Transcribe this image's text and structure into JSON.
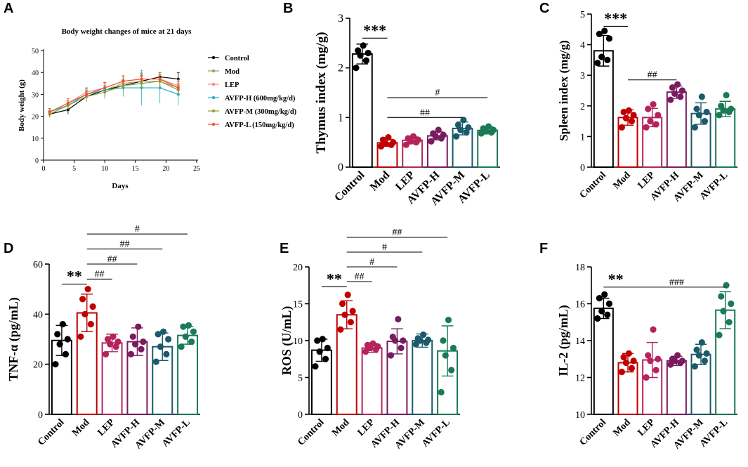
{
  "colors": {
    "Control": "#000000",
    "Mod": "#c00000",
    "LEP": "#b5235d",
    "AVFP-H": "#7a1a5f",
    "AVFP-M": "#1b5a6b",
    "AVFP-L": "#1a7a56"
  },
  "line_colors": {
    "Control": "#000000",
    "Mod": "#a0a060",
    "LEP": "#f08a8a",
    "AVFP-H": "#20b0c0",
    "AVFP-M": "#90a030",
    "AVFP-L": "#f05030"
  },
  "chart_data": [
    {
      "panel": "A",
      "type": "line",
      "title": "Body weight changes of mice at 21 days",
      "xlabel": "Days",
      "ylabel": "Body weight (g)",
      "xlim": [
        0,
        25
      ],
      "ylim": [
        0,
        50
      ],
      "xticks": [
        "0",
        "5",
        "10",
        "15",
        "20",
        "25"
      ],
      "yticks": [
        "0",
        "10",
        "20",
        "30",
        "40",
        "50"
      ],
      "x": [
        1,
        4,
        7,
        10,
        13,
        16,
        19,
        22
      ],
      "legend": [
        "Control",
        "Mod",
        "LEP",
        "AVFP-H (600mg/kg/d)",
        "AVFP-M (300mg/kg/d)",
        "AVFP-L (150mg/kg/d)"
      ],
      "series": [
        {
          "name": "Control",
          "key": "Control",
          "values": [
            21,
            23,
            29,
            32,
            34,
            36,
            38,
            37
          ],
          "err": [
            1.5,
            2,
            2,
            2,
            2.5,
            2.5,
            2,
            3
          ]
        },
        {
          "name": "Mod",
          "key": "Mod",
          "values": [
            21,
            25,
            30,
            32,
            35,
            36,
            36,
            33
          ],
          "err": [
            1.5,
            2,
            2.5,
            3,
            3,
            3,
            3,
            3
          ]
        },
        {
          "name": "LEP",
          "key": "LEP",
          "values": [
            22,
            26,
            31,
            33,
            36,
            37,
            37,
            34
          ],
          "err": [
            1.5,
            2,
            2,
            2.5,
            2.5,
            3,
            3,
            3
          ]
        },
        {
          "name": "AVFP-H (600mg/kg/d)",
          "key": "AVFP-H",
          "values": [
            22,
            25,
            30,
            32,
            33,
            33,
            33,
            30
          ],
          "err": [
            1.5,
            2,
            3,
            3.5,
            4,
            8,
            7,
            5
          ]
        },
        {
          "name": "AVFP-M (300mg/kg/d)",
          "key": "AVFP-M",
          "values": [
            21,
            25,
            29,
            31,
            34,
            35,
            36,
            32
          ],
          "err": [
            1.5,
            2,
            2.5,
            3,
            3,
            3,
            3,
            3
          ]
        },
        {
          "name": "AVFP-L (150mg/kg/d)",
          "key": "AVFP-L",
          "values": [
            22,
            26,
            30,
            33,
            36,
            37,
            37,
            33
          ],
          "err": [
            1.5,
            2,
            2,
            2.5,
            2.5,
            2.5,
            3,
            3
          ]
        }
      ]
    },
    {
      "panel": "B",
      "type": "bar",
      "ylabel": "Thymus index (mg/g)",
      "ylim": [
        0,
        3
      ],
      "yticks": [
        "0",
        "1",
        "2",
        "3"
      ],
      "categories": [
        "Control",
        "Mod",
        "LEP",
        "AVFP-H",
        "AVFP-M",
        "AVFP-L"
      ],
      "values": [
        2.28,
        0.49,
        0.54,
        0.63,
        0.78,
        0.74
      ],
      "err": [
        0.2,
        0.07,
        0.07,
        0.08,
        0.13,
        0.07
      ],
      "points": [
        [
          2.0,
          2.15,
          2.25,
          2.3,
          2.35,
          2.45
        ],
        [
          0.42,
          0.45,
          0.48,
          0.5,
          0.55,
          0.6
        ],
        [
          0.45,
          0.5,
          0.52,
          0.55,
          0.58,
          0.62
        ],
        [
          0.52,
          0.58,
          0.62,
          0.65,
          0.68,
          0.75
        ],
        [
          0.62,
          0.7,
          0.75,
          0.8,
          0.85,
          0.95
        ],
        [
          0.68,
          0.7,
          0.72,
          0.75,
          0.78,
          0.82
        ]
      ],
      "annotations": [
        {
          "from": 0,
          "to": 1,
          "y": 2.6,
          "text": "***"
        },
        {
          "from": 1,
          "to": 4,
          "y": 1.0,
          "text": "##"
        },
        {
          "from": 1,
          "to": 5,
          "y": 1.4,
          "text": "#"
        }
      ]
    },
    {
      "panel": "C",
      "type": "bar",
      "ylabel": "Spleen index (mg/g)",
      "ylim": [
        0,
        5
      ],
      "yticks": [
        "0",
        "1",
        "2",
        "3",
        "4",
        "5"
      ],
      "categories": [
        "Control",
        "Mod",
        "LEP",
        "AVFP-H",
        "AVFP-M",
        "AVFP-L"
      ],
      "values": [
        3.8,
        1.62,
        1.62,
        2.45,
        1.75,
        1.9
      ],
      "err": [
        0.5,
        0.25,
        0.3,
        0.2,
        0.35,
        0.25
      ],
      "points": [
        [
          3.4,
          3.5,
          3.6,
          4.2,
          4.35,
          4.45
        ],
        [
          1.3,
          1.5,
          1.6,
          1.7,
          1.8,
          1.85
        ],
        [
          1.3,
          1.4,
          1.5,
          1.7,
          1.9,
          2.05
        ],
        [
          2.2,
          2.3,
          2.4,
          2.5,
          2.6,
          2.7
        ],
        [
          1.3,
          1.5,
          1.7,
          1.8,
          1.9,
          2.3
        ],
        [
          1.7,
          1.8,
          1.85,
          1.9,
          2.0,
          2.35
        ]
      ],
      "annotations": [
        {
          "from": 0,
          "to": 1,
          "y": 4.6,
          "text": "***"
        },
        {
          "from": 1,
          "to": 3,
          "y": 2.85,
          "text": "##"
        }
      ]
    },
    {
      "panel": "D",
      "type": "bar",
      "ylabel": "TNF-α (pg/mL)",
      "ylim": [
        0,
        60
      ],
      "yticks": [
        "0",
        "20",
        "40",
        "60"
      ],
      "categories": [
        "Control",
        "Mod",
        "LEP",
        "AVFP-H",
        "AVFP-M",
        "AVFP-L"
      ],
      "values": [
        29.5,
        40.5,
        28.5,
        29,
        27,
        31.5
      ],
      "err": [
        6,
        7.5,
        3.5,
        5.5,
        5.5,
        3.5
      ],
      "points": [
        [
          20,
          24,
          28,
          30,
          32,
          36
        ],
        [
          31,
          36,
          40,
          43,
          46,
          50
        ],
        [
          24,
          27,
          28,
          29,
          30,
          31
        ],
        [
          24,
          26,
          28,
          29,
          31,
          35
        ],
        [
          21,
          24,
          27,
          30,
          32,
          33
        ],
        [
          27,
          29,
          31,
          33,
          35,
          35.5
        ]
      ],
      "annotations": [
        {
          "from": 0,
          "to": 1,
          "y": 52,
          "text": "**"
        },
        {
          "from": 1,
          "to": 2,
          "y": 54,
          "text": "##"
        },
        {
          "from": 1,
          "to": 3,
          "y": 60,
          "text": "##"
        },
        {
          "from": 1,
          "to": 4,
          "y": 66,
          "text": "##"
        },
        {
          "from": 1,
          "to": 5,
          "y": 72,
          "text": "#"
        }
      ]
    },
    {
      "panel": "E",
      "type": "bar",
      "ylabel": "ROS (U/mL)",
      "ylim": [
        0,
        20
      ],
      "yticks": [
        "0",
        "5",
        "10",
        "15",
        "20"
      ],
      "categories": [
        "Control",
        "Mod",
        "LEP",
        "AVFP-H",
        "AVFP-M",
        "AVFP-L"
      ],
      "values": [
        8.7,
        13.5,
        9,
        9.9,
        10,
        8.6
      ],
      "err": [
        1.5,
        1.9,
        0.6,
        1.7,
        0.9,
        3.4
      ],
      "points": [
        [
          6.5,
          7.5,
          8.5,
          9,
          10,
          10.2
        ],
        [
          11.5,
          12.5,
          13.5,
          14,
          15,
          16.2
        ],
        [
          8.5,
          8.8,
          9,
          9.2,
          9.4,
          9.6
        ],
        [
          8,
          9,
          10,
          10,
          10.5,
          12.9
        ],
        [
          9.5,
          9.7,
          10,
          10.1,
          10.3,
          10.8
        ],
        [
          3,
          6,
          8,
          9,
          10,
          12.8
        ]
      ],
      "annotations": [
        {
          "from": 0,
          "to": 1,
          "y": 17.3,
          "text": "**"
        },
        {
          "from": 1,
          "to": 2,
          "y": 18,
          "text": "##"
        },
        {
          "from": 1,
          "to": 3,
          "y": 20,
          "text": "#"
        },
        {
          "from": 1,
          "to": 4,
          "y": 22,
          "text": "#"
        },
        {
          "from": 1,
          "to": 5,
          "y": 24,
          "text": "##"
        }
      ]
    },
    {
      "panel": "F",
      "type": "bar",
      "ylabel": "IL-2 (pg/mL)",
      "ylim": [
        10,
        18
      ],
      "yticks": [
        "10",
        "12",
        "14",
        "16",
        "18"
      ],
      "categories": [
        "Control",
        "Mod",
        "LEP",
        "AVFP-H",
        "AVFP-M",
        "AVFP-L"
      ],
      "values": [
        15.75,
        12.8,
        12.95,
        12.9,
        13.25,
        15.65
      ],
      "err": [
        0.55,
        0.5,
        0.95,
        0.25,
        0.55,
        1.0
      ],
      "points": [
        [
          15.2,
          15.4,
          15.6,
          16.0,
          16.3,
          16.5
        ],
        [
          12.3,
          12.5,
          12.8,
          12.9,
          13.1,
          13.3
        ],
        [
          12.0,
          12.4,
          12.9,
          13.0,
          13.2,
          14.6
        ],
        [
          12.7,
          12.8,
          12.9,
          12.9,
          13.0,
          13.2
        ],
        [
          12.6,
          12.9,
          13.2,
          13.3,
          13.5,
          13.9
        ],
        [
          14.3,
          15.0,
          15.6,
          16.0,
          16.4,
          17.0
        ]
      ],
      "annotations": [
        {
          "from": 0,
          "to": 1,
          "y": 16.9,
          "text": "**"
        },
        {
          "from": 1,
          "to": 5,
          "y": 16.9,
          "text": "###",
          "text_at": 3.0
        }
      ]
    }
  ]
}
